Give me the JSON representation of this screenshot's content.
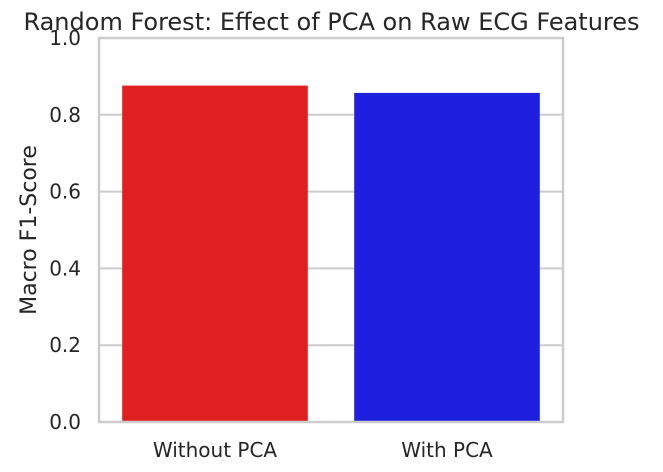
{
  "chart_data": {
    "type": "bar",
    "title": "Random Forest: Effect of PCA on Raw ECG Features",
    "xlabel": "",
    "ylabel": "Macro F1-Score",
    "categories": [
      "Without PCA",
      "With PCA"
    ],
    "values": [
      0.876,
      0.857
    ],
    "colors": [
      "#e02020",
      "#1f1fe0"
    ],
    "ylim": [
      0,
      1.0
    ],
    "yticks": [
      "0.0",
      "0.2",
      "0.4",
      "0.6",
      "0.8",
      "1.0"
    ],
    "grid": "horizontal",
    "grid_color": "#cccccc"
  }
}
